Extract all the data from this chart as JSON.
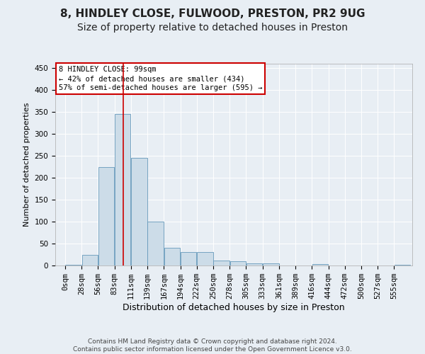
{
  "title": "8, HINDLEY CLOSE, FULWOOD, PRESTON, PR2 9UG",
  "subtitle": "Size of property relative to detached houses in Preston",
  "xlabel": "Distribution of detached houses by size in Preston",
  "ylabel": "Number of detached properties",
  "footer_line1": "Contains HM Land Registry data © Crown copyright and database right 2024.",
  "footer_line2": "Contains public sector information licensed under the Open Government Licence v3.0.",
  "bin_labels": [
    "0sqm",
    "28sqm",
    "56sqm",
    "83sqm",
    "111sqm",
    "139sqm",
    "167sqm",
    "194sqm",
    "222sqm",
    "250sqm",
    "278sqm",
    "305sqm",
    "333sqm",
    "361sqm",
    "389sqm",
    "416sqm",
    "444sqm",
    "472sqm",
    "500sqm",
    "527sqm",
    "555sqm"
  ],
  "bar_heights": [
    2,
    25,
    225,
    345,
    245,
    100,
    40,
    30,
    30,
    12,
    10,
    5,
    5,
    0,
    0,
    3,
    0,
    0,
    0,
    0,
    1
  ],
  "bar_color": "#ccdce8",
  "bar_edge_color": "#6699bb",
  "annotation_box_text": "8 HINDLEY CLOSE: 99sqm\n← 42% of detached houses are smaller (434)\n57% of semi-detached houses are larger (595) →",
  "property_line_x": 99,
  "property_line_color": "#cc0000",
  "bin_width": 28,
  "ylim": [
    0,
    460
  ],
  "yticks": [
    0,
    50,
    100,
    150,
    200,
    250,
    300,
    350,
    400,
    450
  ],
  "background_color": "#e8eef4",
  "grid_color": "#ffffff",
  "title_fontsize": 11,
  "subtitle_fontsize": 10,
  "xlabel_fontsize": 9,
  "ylabel_fontsize": 8,
  "tick_fontsize": 7.5
}
